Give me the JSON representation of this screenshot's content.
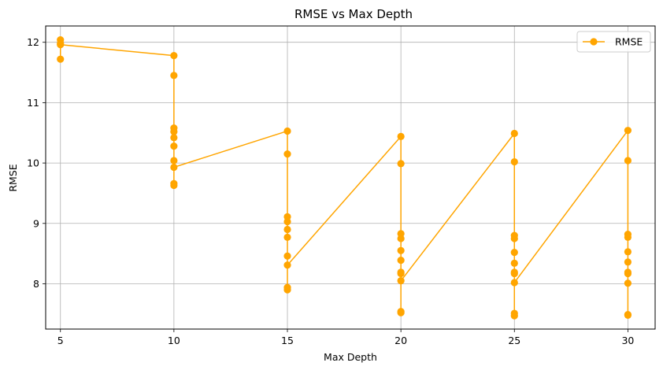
{
  "chart_data": {
    "type": "line",
    "title": "RMSE vs Max Depth",
    "xlabel": "Max Depth",
    "ylabel": "RMSE",
    "xlim": [
      4.35,
      31.2
    ],
    "ylim": [
      7.25,
      12.27
    ],
    "xticks": [
      5,
      10,
      15,
      20,
      25,
      30
    ],
    "yticks": [
      8,
      9,
      10,
      11,
      12
    ],
    "grid": true,
    "legend": "top-right",
    "color": "#ffa500",
    "series": [
      {
        "name": "RMSE",
        "x": [
          5,
          5,
          5,
          5,
          10,
          10,
          10,
          10,
          10,
          10,
          10,
          10,
          10,
          10,
          15,
          15,
          15,
          15,
          15,
          15,
          15,
          15,
          15,
          15,
          20,
          20,
          20,
          20,
          20,
          20,
          20,
          20,
          20,
          20,
          20,
          25,
          25,
          25,
          25,
          25,
          25,
          25,
          25,
          25,
          25,
          25,
          30,
          30,
          30,
          30,
          30,
          30,
          30,
          30,
          30,
          30,
          30
        ],
        "y": [
          12.04,
          11.98,
          11.72,
          11.96,
          11.78,
          11.45,
          10.58,
          10.52,
          10.42,
          10.28,
          10.04,
          9.66,
          9.63,
          9.93,
          10.53,
          10.15,
          9.11,
          9.03,
          8.9,
          8.77,
          8.46,
          7.94,
          7.9,
          8.31,
          10.44,
          9.99,
          8.83,
          8.75,
          8.55,
          8.39,
          8.19,
          8.17,
          7.54,
          7.52,
          8.05,
          10.49,
          10.02,
          8.8,
          8.75,
          8.52,
          8.34,
          8.19,
          8.17,
          7.51,
          7.47,
          8.02,
          10.54,
          10.04,
          8.82,
          8.77,
          8.53,
          8.36,
          8.19,
          8.17,
          7.49,
          7.48,
          8.01
        ]
      }
    ]
  }
}
